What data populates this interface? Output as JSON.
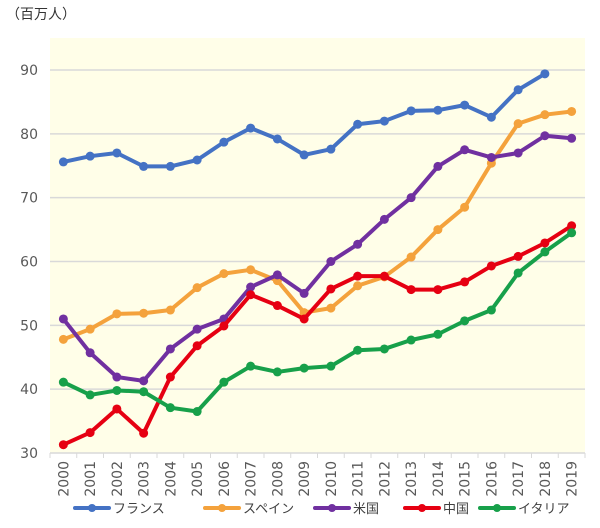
{
  "chart_data": {
    "type": "line",
    "unit_label": "（百万人）",
    "x": [
      "2000",
      "2001",
      "2002",
      "2003",
      "2004",
      "2005",
      "2006",
      "2007",
      "2008",
      "2009",
      "2010",
      "2011",
      "2012",
      "2013",
      "2014",
      "2015",
      "2016",
      "2017",
      "2018",
      "2019"
    ],
    "yticks": [
      "30",
      "40",
      "50",
      "60",
      "70",
      "80",
      "90"
    ],
    "ylim": [
      30,
      95
    ],
    "grid": true,
    "legend_position": "bottom",
    "background": "#fffee8",
    "series": [
      {
        "name": "フランス",
        "color": "#4472c4",
        "values": [
          75.6,
          76.5,
          77.0,
          74.9,
          74.9,
          75.9,
          78.7,
          80.9,
          79.2,
          76.7,
          77.6,
          81.5,
          82.0,
          83.6,
          83.7,
          84.5,
          82.6,
          86.9,
          89.4,
          null
        ]
      },
      {
        "name": "スペイン",
        "color": "#f4a23c",
        "values": [
          47.8,
          49.4,
          51.8,
          51.9,
          52.4,
          55.9,
          58.1,
          58.7,
          57.0,
          52.0,
          52.7,
          56.2,
          57.6,
          60.7,
          65.0,
          68.5,
          75.4,
          81.6,
          83.0,
          83.5
        ]
      },
      {
        "name": "米国",
        "color": "#7030a0",
        "values": [
          51.0,
          45.7,
          41.9,
          41.3,
          46.3,
          49.4,
          51.0,
          56.0,
          57.9,
          55.0,
          60.0,
          62.7,
          66.6,
          70.0,
          74.9,
          77.5,
          76.3,
          77.0,
          79.7,
          79.3
        ]
      },
      {
        "name": "中国",
        "color": "#e60012",
        "values": [
          31.3,
          33.2,
          36.9,
          33.1,
          41.9,
          46.8,
          49.9,
          54.8,
          53.1,
          51.0,
          55.7,
          57.7,
          57.7,
          55.6,
          55.6,
          56.8,
          59.3,
          60.8,
          62.9,
          65.6
        ]
      },
      {
        "name": "イタリア",
        "color": "#17a04a",
        "values": [
          41.1,
          39.1,
          39.8,
          39.6,
          37.1,
          36.5,
          41.1,
          43.6,
          42.7,
          43.3,
          43.6,
          46.1,
          46.3,
          47.7,
          48.6,
          50.7,
          52.4,
          58.2,
          61.5,
          64.5
        ]
      }
    ]
  }
}
